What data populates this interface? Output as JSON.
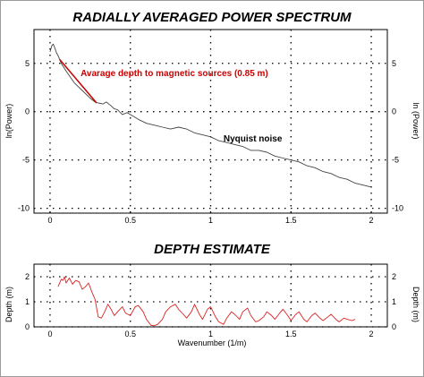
{
  "chart_data": [
    {
      "type": "line",
      "title": "RADIALLY AVERAGED POWER SPECTRUM",
      "xlabel": "",
      "ylabel_left": "ln(Power)",
      "ylabel_right": "ln (Power)",
      "xlim": [
        -0.1,
        2.1
      ],
      "ylim": [
        -10.5,
        8.5
      ],
      "x_ticks": [
        0,
        0.5,
        1,
        1.5,
        2
      ],
      "x_tick_labels": [
        "0",
        "0.5",
        "1",
        "1.5",
        "2"
      ],
      "y_ticks": [
        5,
        0,
        -5,
        -10
      ],
      "y_tick_labels": [
        "5",
        "0",
        "-5",
        "-10"
      ],
      "grid": true,
      "series": [
        {
          "color": "#444444",
          "x": [
            0,
            0.01,
            0.02,
            0.03,
            0.04,
            0.05,
            0.07,
            0.1,
            0.15,
            0.2,
            0.25,
            0.28,
            0.3,
            0.33,
            0.35,
            0.38,
            0.4,
            0.42,
            0.45,
            0.48,
            0.5,
            0.55,
            0.6,
            0.65,
            0.7,
            0.75,
            0.8,
            0.85,
            0.9,
            0.95,
            1.0,
            1.05,
            1.1,
            1.15,
            1.2,
            1.25,
            1.3,
            1.35,
            1.4,
            1.45,
            1.5,
            1.55,
            1.6,
            1.65,
            1.7,
            1.75,
            1.8,
            1.85,
            1.9,
            1.95,
            2.0
          ],
          "y": [
            6.2,
            6.8,
            7.0,
            6.6,
            6.1,
            5.8,
            5.0,
            4.2,
            3.0,
            2.2,
            1.4,
            1.0,
            0.9,
            0.8,
            1.0,
            0.6,
            0.3,
            0.2,
            -0.3,
            -0.1,
            -0.3,
            -0.8,
            -1.2,
            -1.4,
            -1.6,
            -1.8,
            -1.6,
            -1.8,
            -2.2,
            -2.4,
            -2.6,
            -3.0,
            -3.2,
            -3.4,
            -3.6,
            -4.0,
            -4.0,
            -4.2,
            -4.6,
            -4.8,
            -5.0,
            -5.2,
            -5.6,
            -5.8,
            -6.2,
            -6.4,
            -6.8,
            -7.0,
            -7.4,
            -7.6,
            -7.8
          ]
        },
        {
          "color": "#cc0000",
          "x": [
            0.06,
            0.29
          ],
          "y": [
            5.4,
            0.9
          ]
        }
      ],
      "annotations": [
        {
          "text": "Avarage depth to magnetic sources (0.85 m)",
          "x": 0.19,
          "y": 3.7,
          "color": "#cc0000"
        },
        {
          "text": "Nyquist noise",
          "x": 1.08,
          "y": -3.1,
          "color": "#000000"
        }
      ]
    },
    {
      "type": "line",
      "title": "DEPTH ESTIMATE",
      "xlabel": "Wavenumber (1/m)",
      "ylabel_left": "Depth (m)",
      "ylabel_right": "Depth (m)",
      "xlim": [
        -0.1,
        2.1
      ],
      "ylim": [
        0,
        2.5
      ],
      "x_ticks": [
        0,
        0.5,
        1,
        1.5,
        2
      ],
      "x_tick_labels": [
        "0",
        "0.5",
        "1",
        "1.5",
        "2"
      ],
      "y_ticks": [
        2,
        1,
        0
      ],
      "y_tick_labels": [
        "2",
        "1",
        "0"
      ],
      "grid": true,
      "series": [
        {
          "color": "#dd2222",
          "x": [
            0.05,
            0.07,
            0.08,
            0.09,
            0.1,
            0.11,
            0.12,
            0.14,
            0.16,
            0.18,
            0.2,
            0.22,
            0.24,
            0.26,
            0.28,
            0.3,
            0.32,
            0.34,
            0.36,
            0.38,
            0.4,
            0.42,
            0.45,
            0.47,
            0.5,
            0.53,
            0.55,
            0.58,
            0.6,
            0.63,
            0.65,
            0.67,
            0.7,
            0.72,
            0.75,
            0.78,
            0.8,
            0.83,
            0.85,
            0.88,
            0.9,
            0.93,
            0.95,
            0.98,
            1.0,
            1.03,
            1.05,
            1.08,
            1.1,
            1.13,
            1.15,
            1.18,
            1.2,
            1.23,
            1.25,
            1.28,
            1.3,
            1.33,
            1.35,
            1.38,
            1.4,
            1.43,
            1.45,
            1.48,
            1.5,
            1.53,
            1.55,
            1.58,
            1.6,
            1.63,
            1.65,
            1.68,
            1.7,
            1.73,
            1.75,
            1.78,
            1.8,
            1.83,
            1.85,
            1.88,
            1.9
          ],
          "y": [
            1.6,
            1.9,
            1.85,
            2.0,
            1.75,
            1.85,
            1.95,
            1.7,
            1.85,
            1.8,
            1.5,
            1.6,
            1.75,
            1.4,
            1.1,
            0.4,
            0.35,
            0.6,
            0.9,
            0.7,
            0.45,
            0.6,
            0.8,
            0.55,
            0.45,
            0.8,
            0.85,
            0.6,
            0.3,
            0.05,
            0.05,
            0.1,
            0.3,
            0.6,
            0.8,
            0.9,
            0.7,
            0.5,
            0.35,
            0.6,
            0.9,
            0.5,
            0.3,
            0.7,
            0.8,
            0.4,
            0.2,
            0.1,
            0.35,
            0.6,
            0.5,
            0.3,
            0.6,
            0.75,
            0.45,
            0.2,
            0.25,
            0.4,
            0.6,
            0.45,
            0.3,
            0.55,
            0.7,
            0.45,
            0.25,
            0.5,
            0.6,
            0.3,
            0.2,
            0.45,
            0.55,
            0.35,
            0.25,
            0.4,
            0.5,
            0.3,
            0.2,
            0.35,
            0.3,
            0.25,
            0.3
          ]
        }
      ],
      "annotations": []
    }
  ]
}
